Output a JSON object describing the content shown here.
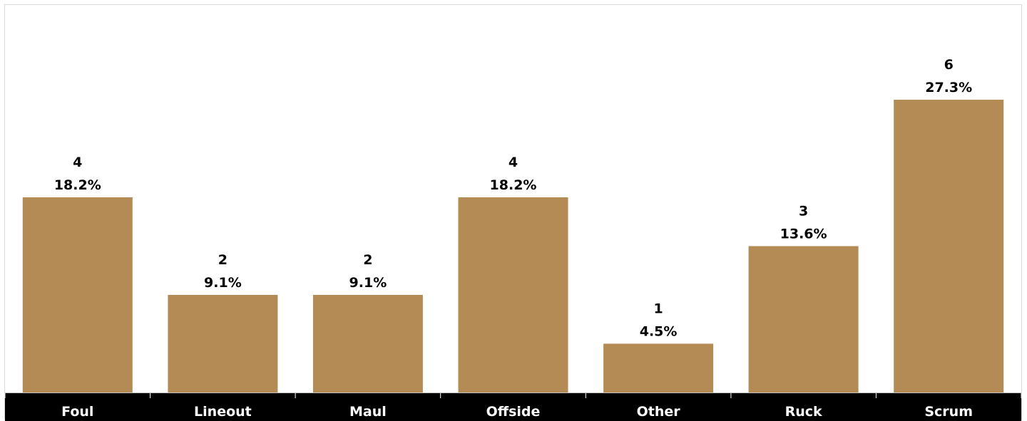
{
  "chart_data": {
    "type": "bar",
    "categories": [
      "Foul",
      "Lineout",
      "Maul",
      "Offside",
      "Other",
      "Ruck",
      "Scrum"
    ],
    "values": [
      4,
      2,
      2,
      4,
      1,
      3,
      6
    ],
    "percent_labels": [
      "18.2%",
      "9.1%",
      "9.1%",
      "18.2%",
      "4.5%",
      "13.6%",
      "27.3%"
    ],
    "ylim": [
      0,
      6.5
    ],
    "bar_color": "#b48a55",
    "axis_band_color": "#000000",
    "category_label_color": "#ffffff",
    "grid": false,
    "legend": "none"
  }
}
